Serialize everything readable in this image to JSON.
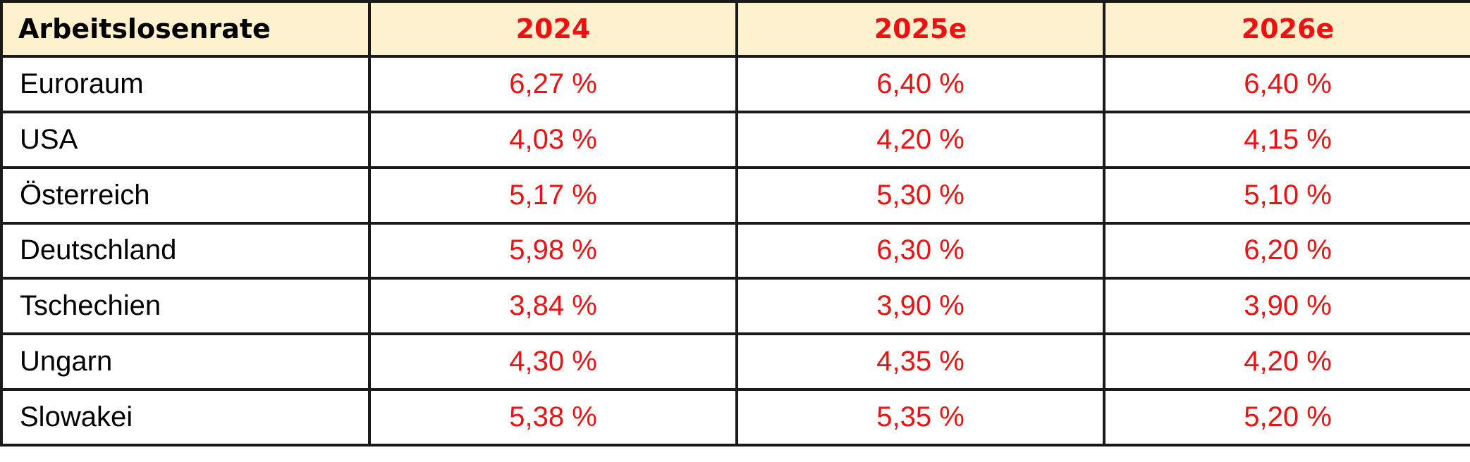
{
  "table": {
    "corner_label": "Arbeitslosenrate",
    "years": [
      "2024",
      "2025e",
      "2026e"
    ],
    "rows": [
      {
        "country": "Euroraum",
        "values": [
          "6,27 %",
          "6,40 %",
          "6,40 %"
        ]
      },
      {
        "country": "USA",
        "values": [
          "4,03 %",
          "4,20 %",
          "4,15 %"
        ]
      },
      {
        "country": "Österreich",
        "values": [
          "5,17 %",
          "5,30 %",
          "5,10 %"
        ]
      },
      {
        "country": "Deutschland",
        "values": [
          "5,98 %",
          "6,30 %",
          "6,20 %"
        ]
      },
      {
        "country": "Tschechien",
        "values": [
          "3,84 %",
          "3,90 %",
          "3,90 %"
        ]
      },
      {
        "country": "Ungarn",
        "values": [
          "4,30 %",
          "4,35 %",
          "4,20 %"
        ]
      },
      {
        "country": "Slowakei",
        "values": [
          "5,38 %",
          "5,35 %",
          "5,20 %"
        ]
      }
    ]
  },
  "colors": {
    "header_background": "#fdf0cd",
    "value_text": "#ee1111",
    "border": "#1a1a1a"
  }
}
